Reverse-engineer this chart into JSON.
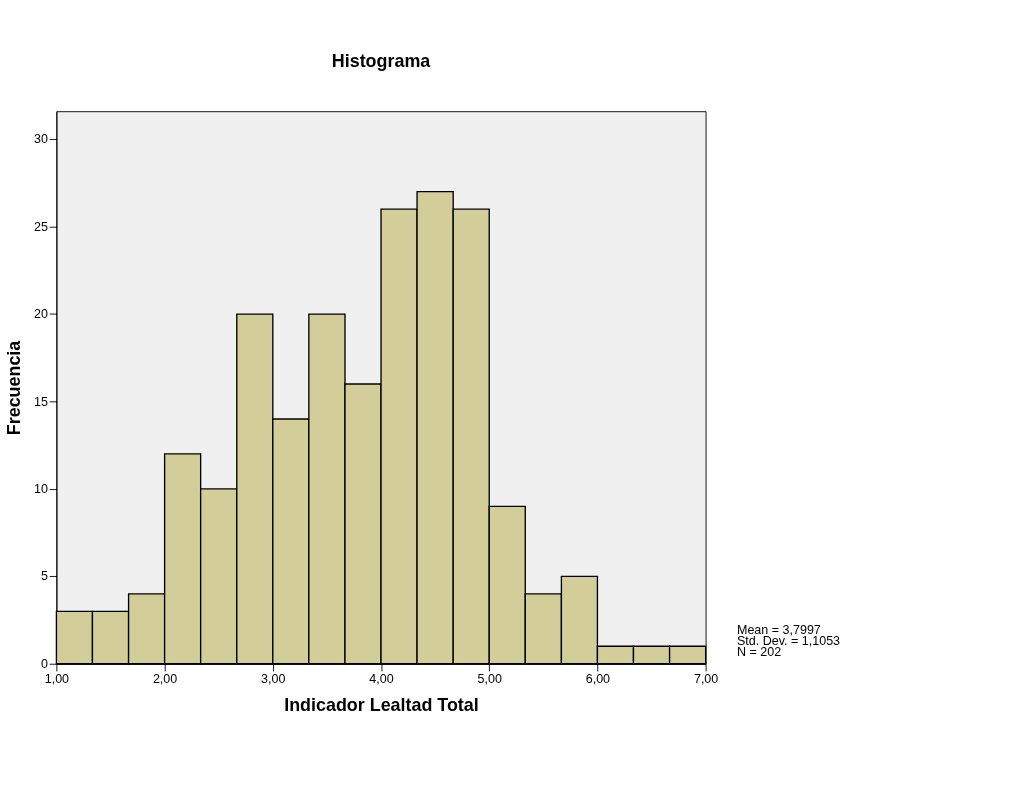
{
  "chart_data": {
    "type": "histogram",
    "title": "Histograma",
    "xlabel": "Indicador Lealtad Total",
    "ylabel": "Frecuencia",
    "bins": [
      1,
      1.333,
      1.667,
      2,
      2.333,
      2.667,
      3,
      3.333,
      3.667,
      4,
      4.333,
      4.667,
      5,
      5.333,
      5.667,
      6,
      6.333,
      6.667,
      7
    ],
    "values": [
      3,
      3,
      4,
      12,
      10,
      20,
      14,
      20,
      16,
      26,
      27,
      26,
      9,
      4,
      5,
      1,
      1,
      1
    ],
    "color": "#d3ce99",
    "xlim": [
      1,
      7
    ],
    "xticks": [
      {
        "value": 1,
        "label": "1,00"
      },
      {
        "value": 2,
        "label": "2,00"
      },
      {
        "value": 3,
        "label": "3,00"
      },
      {
        "value": 4,
        "label": "4,00"
      },
      {
        "value": 5,
        "label": "5,00"
      },
      {
        "value": 6,
        "label": "6,00"
      },
      {
        "value": 7,
        "label": "7,00"
      }
    ],
    "ylim": [
      0,
      31.6
    ],
    "yticks": [
      0,
      5,
      10,
      15,
      20,
      25,
      30
    ],
    "grid": false,
    "annotations": [
      "Mean = 3,7997",
      "Std. Dev. = 1,1053",
      "N = 202"
    ]
  }
}
